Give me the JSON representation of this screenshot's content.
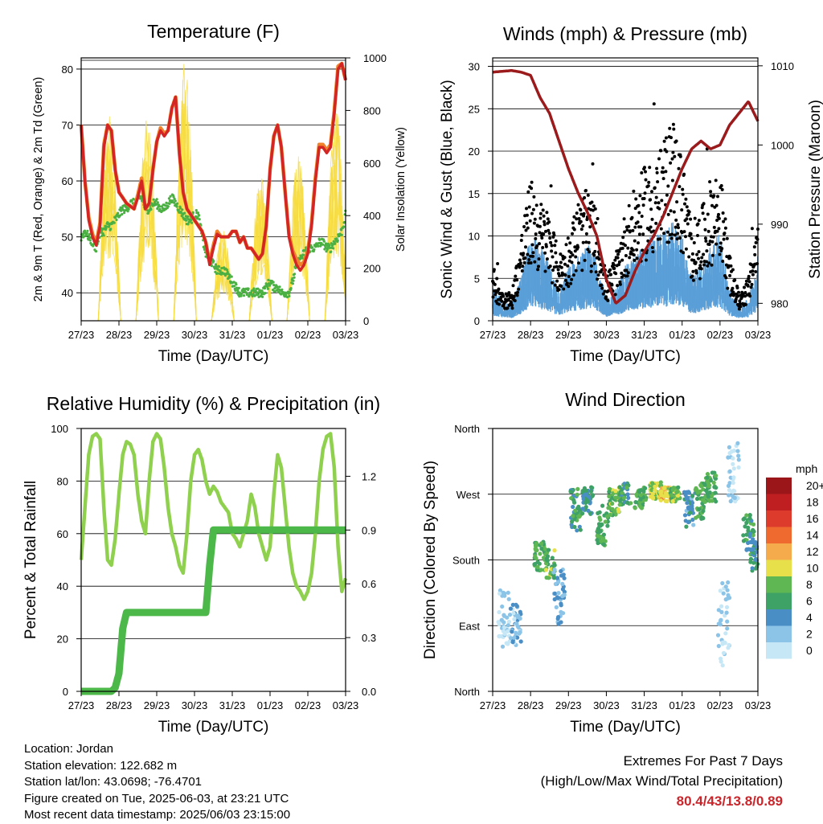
{
  "colors": {
    "temp_2m": "#d42525",
    "temp_9m": "#f0822c",
    "dewpoint": "#4bb043",
    "solar": "#f7dc3f",
    "wind": "#5a9fd8",
    "gust": "#000000",
    "pressure": "#9b1b1d",
    "rh": "#8fd14f",
    "precip": "#4cb849"
  },
  "x_ticks": [
    "27/23",
    "28/23",
    "29/23",
    "30/23",
    "31/23",
    "01/23",
    "02/23",
    "03/23"
  ],
  "chart_data": [
    {
      "id": "temperature",
      "type": "line",
      "title": "Temperature (F)",
      "xlabel": "Time (Day/UTC)",
      "ylabel": "2m & 9m T (Red, Orange) & 2m Td (Green)",
      "ylabel_right": "Solar Insolation (Yellow)",
      "ylim": [
        35,
        82
      ],
      "yticks": [
        40,
        50,
        60,
        70,
        80
      ],
      "ylim_right": [
        0,
        1000
      ],
      "yticks_right": [
        0,
        200,
        400,
        600,
        800,
        1000
      ],
      "x": [
        0,
        0.1,
        0.2,
        0.3,
        0.4,
        0.5,
        0.6,
        0.7,
        0.8,
        0.9,
        1.0,
        1.1,
        1.2,
        1.3,
        1.4,
        1.5,
        1.6,
        1.7,
        1.8,
        1.9,
        2.0,
        2.1,
        2.2,
        2.3,
        2.4,
        2.5,
        2.6,
        2.7,
        2.8,
        2.9,
        3.0,
        3.1,
        3.2,
        3.3,
        3.4,
        3.5,
        3.6,
        3.7,
        3.8,
        3.9,
        4.0,
        4.1,
        4.2,
        4.3,
        4.4,
        4.5,
        4.6,
        4.7,
        4.8,
        4.9,
        5.0,
        5.1,
        5.2,
        5.3,
        5.4,
        5.5,
        5.6,
        5.7,
        5.8,
        5.9,
        6.0,
        6.1,
        6.2,
        6.3,
        6.4,
        6.5,
        6.6,
        6.7,
        6.8,
        6.9,
        7.0
      ],
      "series": [
        {
          "name": "2m T",
          "values": [
            70,
            60,
            53,
            50,
            48.5,
            52,
            66,
            70,
            69,
            62,
            58,
            57,
            56,
            55.5,
            55,
            57,
            60,
            55,
            56,
            62,
            67,
            69,
            68,
            69,
            73,
            75,
            65,
            58,
            55,
            54,
            53,
            52,
            51,
            49,
            45,
            48,
            50.5,
            50,
            50,
            50,
            51,
            51,
            49,
            50,
            48,
            48,
            47,
            46,
            47,
            52,
            62,
            68,
            70,
            66,
            58,
            50,
            47,
            45,
            44,
            45,
            47,
            52,
            60,
            66,
            66,
            65,
            66,
            72,
            80,
            81,
            78
          ]
        },
        {
          "name": "9m T",
          "values": [
            70,
            60,
            53.5,
            50.5,
            49,
            52.5,
            66.5,
            70,
            69,
            62,
            58,
            57,
            56,
            55.5,
            55,
            57.5,
            60.5,
            55,
            56,
            62,
            67,
            69.5,
            68.5,
            69,
            73,
            75,
            65,
            58,
            55,
            54,
            53,
            52,
            51,
            49,
            45.5,
            48.5,
            51,
            50,
            50,
            50,
            51,
            51,
            49,
            50,
            48,
            48,
            47,
            46,
            47,
            52,
            62,
            68,
            70,
            66,
            58,
            50.5,
            47.5,
            46,
            45,
            45.5,
            47.5,
            52.5,
            60.5,
            66.5,
            66.5,
            65.5,
            66.5,
            72.5,
            80.5,
            81,
            78
          ]
        },
        {
          "name": "2m Td",
          "values": [
            50,
            51,
            50,
            49,
            48,
            51,
            51,
            52,
            52,
            53,
            54,
            55,
            55,
            56,
            56,
            57,
            57,
            55,
            55,
            56,
            56,
            55,
            55,
            56,
            57,
            56,
            55,
            54,
            53,
            53,
            54,
            54,
            50,
            47,
            46,
            45,
            44,
            44,
            44,
            43,
            42,
            41,
            40,
            40,
            40,
            40,
            40,
            40,
            40,
            41,
            42,
            41,
            41,
            40,
            40,
            40,
            42,
            45,
            46,
            47,
            48,
            48,
            48,
            49,
            49,
            48,
            48,
            49,
            50,
            51,
            54
          ]
        },
        {
          "name": "Solar",
          "values": [
            0,
            0,
            0,
            0,
            0,
            0,
            0,
            400,
            700,
            500,
            300,
            100,
            0,
            0,
            0,
            0,
            0,
            0,
            0,
            0,
            0,
            300,
            700,
            600,
            200,
            0,
            0,
            0,
            0,
            0,
            0,
            0,
            0,
            0,
            0,
            0,
            0,
            0,
            0,
            0,
            0,
            0,
            0,
            0,
            0,
            0,
            0,
            0,
            0,
            0,
            0,
            0,
            0,
            0,
            0,
            0,
            0,
            0,
            0,
            0,
            0,
            0,
            0,
            0,
            0,
            0,
            0,
            0,
            0,
            0,
            0
          ]
        }
      ],
      "solar_days": [
        {
          "start": 0.45,
          "end": 1.05,
          "peak": 780
        },
        {
          "start": 1.45,
          "end": 2.05,
          "peak": 780
        },
        {
          "start": 2.45,
          "end": 3.05,
          "peak": 990
        },
        {
          "start": 3.45,
          "end": 4.05,
          "peak": 350
        },
        {
          "start": 4.45,
          "end": 5.05,
          "peak": 560
        },
        {
          "start": 5.45,
          "end": 6.05,
          "peak": 650
        },
        {
          "start": 6.45,
          "end": 7.05,
          "peak": 820
        }
      ]
    },
    {
      "id": "winds",
      "type": "line",
      "title": "Winds (mph) & Pressure (mb)",
      "xlabel": "Time (Day/UTC)",
      "ylabel": "Sonic Wind & Gust (Blue, Black)",
      "ylabel_right": "Station Pressure (Maroon)",
      "ylim": [
        0,
        31
      ],
      "yticks": [
        0,
        5,
        10,
        15,
        20,
        25,
        30
      ],
      "ylim_right": [
        977.8,
        1011
      ],
      "yticks_right": [
        980,
        990,
        1000,
        1010
      ],
      "x": [
        0,
        0.25,
        0.5,
        0.75,
        1.0,
        1.25,
        1.5,
        1.75,
        2.0,
        2.25,
        2.5,
        2.75,
        3.0,
        3.25,
        3.5,
        3.75,
        4.0,
        4.25,
        4.5,
        4.75,
        5.0,
        5.25,
        5.5,
        5.75,
        6.0,
        6.25,
        6.5,
        6.75,
        7.0
      ],
      "series": [
        {
          "name": "Wind",
          "values": [
            3,
            2,
            1.5,
            4,
            8,
            7,
            5,
            3,
            5,
            6,
            7,
            6,
            2,
            3,
            5,
            6,
            7,
            8,
            8,
            9,
            8,
            4,
            5,
            7,
            8,
            3,
            1.5,
            2,
            6
          ]
        },
        {
          "name": "Gust",
          "values": [
            5,
            3,
            2.5,
            8,
            13,
            11,
            10,
            6,
            8,
            11,
            12,
            10,
            4,
            6,
            10,
            12,
            14,
            15,
            16,
            19,
            15,
            9,
            10,
            13,
            14,
            6,
            2.5,
            4,
            10
          ]
        },
        {
          "name": "Pressure",
          "values": [
            1009.2,
            1009.3,
            1009.4,
            1009.2,
            1008.8,
            1006.0,
            1004.0,
            1000.5,
            997.0,
            994.0,
            991.5,
            988.5,
            983.0,
            980.0,
            981.0,
            984.0,
            986.5,
            988.5,
            991.0,
            994.0,
            997.0,
            999.5,
            1000.5,
            999.5,
            1000.0,
            1002.5,
            1004.0,
            1005.5,
            1003.0
          ]
        }
      ]
    },
    {
      "id": "humidity",
      "type": "line",
      "title": "Relative Humidity (%) & Precipitation (in)",
      "xlabel": "Time (Day/UTC)",
      "ylabel": "Percent & Total Rainfall",
      "ylim": [
        0,
        100
      ],
      "yticks": [
        0,
        20,
        40,
        60,
        80,
        100
      ],
      "ylim_right": [
        0,
        1.4666
      ],
      "yticks_right": [
        "0.0",
        "0.3",
        "0.6",
        "0.9",
        "1.2"
      ],
      "x": [
        0,
        0.1,
        0.2,
        0.3,
        0.4,
        0.5,
        0.6,
        0.7,
        0.8,
        0.9,
        1.0,
        1.1,
        1.2,
        1.3,
        1.4,
        1.5,
        1.6,
        1.7,
        1.8,
        1.9,
        2.0,
        2.1,
        2.2,
        2.3,
        2.4,
        2.5,
        2.6,
        2.7,
        2.8,
        2.9,
        3.0,
        3.1,
        3.2,
        3.3,
        3.4,
        3.5,
        3.6,
        3.7,
        3.8,
        3.9,
        4.0,
        4.1,
        4.2,
        4.3,
        4.4,
        4.5,
        4.6,
        4.7,
        4.8,
        4.9,
        5.0,
        5.1,
        5.2,
        5.3,
        5.4,
        5.5,
        5.6,
        5.7,
        5.8,
        5.9,
        6.0,
        6.1,
        6.2,
        6.3,
        6.4,
        6.5,
        6.6,
        6.7,
        6.8,
        6.9,
        7.0
      ],
      "series": [
        {
          "name": "RH",
          "values": [
            50,
            70,
            90,
            97,
            98,
            96,
            70,
            50,
            48,
            58,
            75,
            90,
            95,
            94,
            90,
            75,
            65,
            60,
            80,
            95,
            98,
            96,
            85,
            70,
            60,
            55,
            48,
            45,
            60,
            80,
            90,
            92,
            88,
            80,
            75,
            78,
            76,
            72,
            70,
            68,
            60,
            58,
            55,
            60,
            65,
            75,
            70,
            60,
            55,
            50,
            55,
            75,
            90,
            85,
            70,
            55,
            45,
            40,
            38,
            35,
            38,
            45,
            60,
            80,
            92,
            97,
            98,
            85,
            55,
            38,
            43
          ]
        },
        {
          "name": "Precipitation",
          "values": [
            0,
            0,
            0,
            0,
            0,
            0,
            0,
            0,
            0,
            0.02,
            0.1,
            0.35,
            0.44,
            0.44,
            0.44,
            0.44,
            0.44,
            0.44,
            0.44,
            0.44,
            0.44,
            0.44,
            0.44,
            0.44,
            0.44,
            0.44,
            0.44,
            0.44,
            0.44,
            0.44,
            0.44,
            0.44,
            0.44,
            0.44,
            0.7,
            0.9,
            0.9,
            0.9,
            0.9,
            0.9,
            0.9,
            0.9,
            0.9,
            0.9,
            0.9,
            0.9,
            0.9,
            0.9,
            0.9,
            0.9,
            0.9,
            0.9,
            0.9,
            0.9,
            0.9,
            0.9,
            0.9,
            0.9,
            0.9,
            0.9,
            0.9,
            0.9,
            0.9,
            0.9,
            0.9,
            0.9,
            0.9,
            0.9,
            0.9,
            0.9,
            0.9
          ]
        }
      ]
    },
    {
      "id": "direction",
      "type": "scatter",
      "title": "Wind Direction",
      "xlabel": "Time (Day/UTC)",
      "ylabel": "Direction (Colored By Speed)",
      "yticks": [
        "North",
        "East",
        "South",
        "West",
        "North"
      ],
      "ylim": [
        0,
        360
      ],
      "legend_title": "mph",
      "legend_labels": [
        "0",
        "2",
        "4",
        "6",
        "8",
        "10",
        "12",
        "14",
        "16",
        "18",
        "20+"
      ],
      "legend_colors": [
        "#c6e7f6",
        "#8cc4e8",
        "#4a8ec6",
        "#3ea165",
        "#5fb754",
        "#e7e04b",
        "#f5ab4b",
        "#ee6a2f",
        "#dd3b2b",
        "#c01f22",
        "#9b1619"
      ],
      "clusters": [
        {
          "t": 0.3,
          "dir": 100,
          "spread": 40,
          "speed": 1
        },
        {
          "t": 0.6,
          "dir": 90,
          "spread": 30,
          "speed": 2
        },
        {
          "t": 1.25,
          "dir": 185,
          "spread": 20,
          "speed": 7
        },
        {
          "t": 1.5,
          "dir": 175,
          "spread": 20,
          "speed": 8
        },
        {
          "t": 1.75,
          "dir": 130,
          "spread": 40,
          "speed": 3
        },
        {
          "t": 2.2,
          "dir": 250,
          "spread": 30,
          "speed": 6
        },
        {
          "t": 2.5,
          "dir": 260,
          "spread": 20,
          "speed": 5
        },
        {
          "t": 2.9,
          "dir": 230,
          "spread": 30,
          "speed": 7
        },
        {
          "t": 3.2,
          "dir": 260,
          "spread": 20,
          "speed": 8
        },
        {
          "t": 3.5,
          "dir": 270,
          "spread": 15,
          "speed": 6
        },
        {
          "t": 3.9,
          "dir": 265,
          "spread": 15,
          "speed": 7
        },
        {
          "t": 4.3,
          "dir": 275,
          "spread": 12,
          "speed": 9
        },
        {
          "t": 4.55,
          "dir": 270,
          "spread": 10,
          "speed": 12
        },
        {
          "t": 4.8,
          "dir": 270,
          "spread": 10,
          "speed": 8
        },
        {
          "t": 5.2,
          "dir": 250,
          "spread": 25,
          "speed": 4
        },
        {
          "t": 5.5,
          "dir": 260,
          "spread": 25,
          "speed": 7
        },
        {
          "t": 5.75,
          "dir": 280,
          "spread": 20,
          "speed": 7
        },
        {
          "t": 6.1,
          "dir": 90,
          "spread": 60,
          "speed": 1
        },
        {
          "t": 6.35,
          "dir": 300,
          "spread": 40,
          "speed": 1
        },
        {
          "t": 6.75,
          "dir": 215,
          "spread": 30,
          "speed": 6
        },
        {
          "t": 6.95,
          "dir": 185,
          "spread": 20,
          "speed": 5
        }
      ]
    }
  ],
  "info": {
    "location": "Location: Jordan",
    "elevation": "Station elevation: 122.682 m",
    "latlon": "Station lat/lon: 43.0698; -76.4701",
    "created": "Figure created on Tue, 2025-06-03, at 23:21 UTC",
    "recent": "Most recent data timestamp: 2025/06/03 23:15:00"
  },
  "extremes": {
    "title": "Extremes For Past 7 Days",
    "subtitle": "(High/Low/Max Wind/Total Precipitation)",
    "values": "80.4/43/13.8/0.89"
  }
}
